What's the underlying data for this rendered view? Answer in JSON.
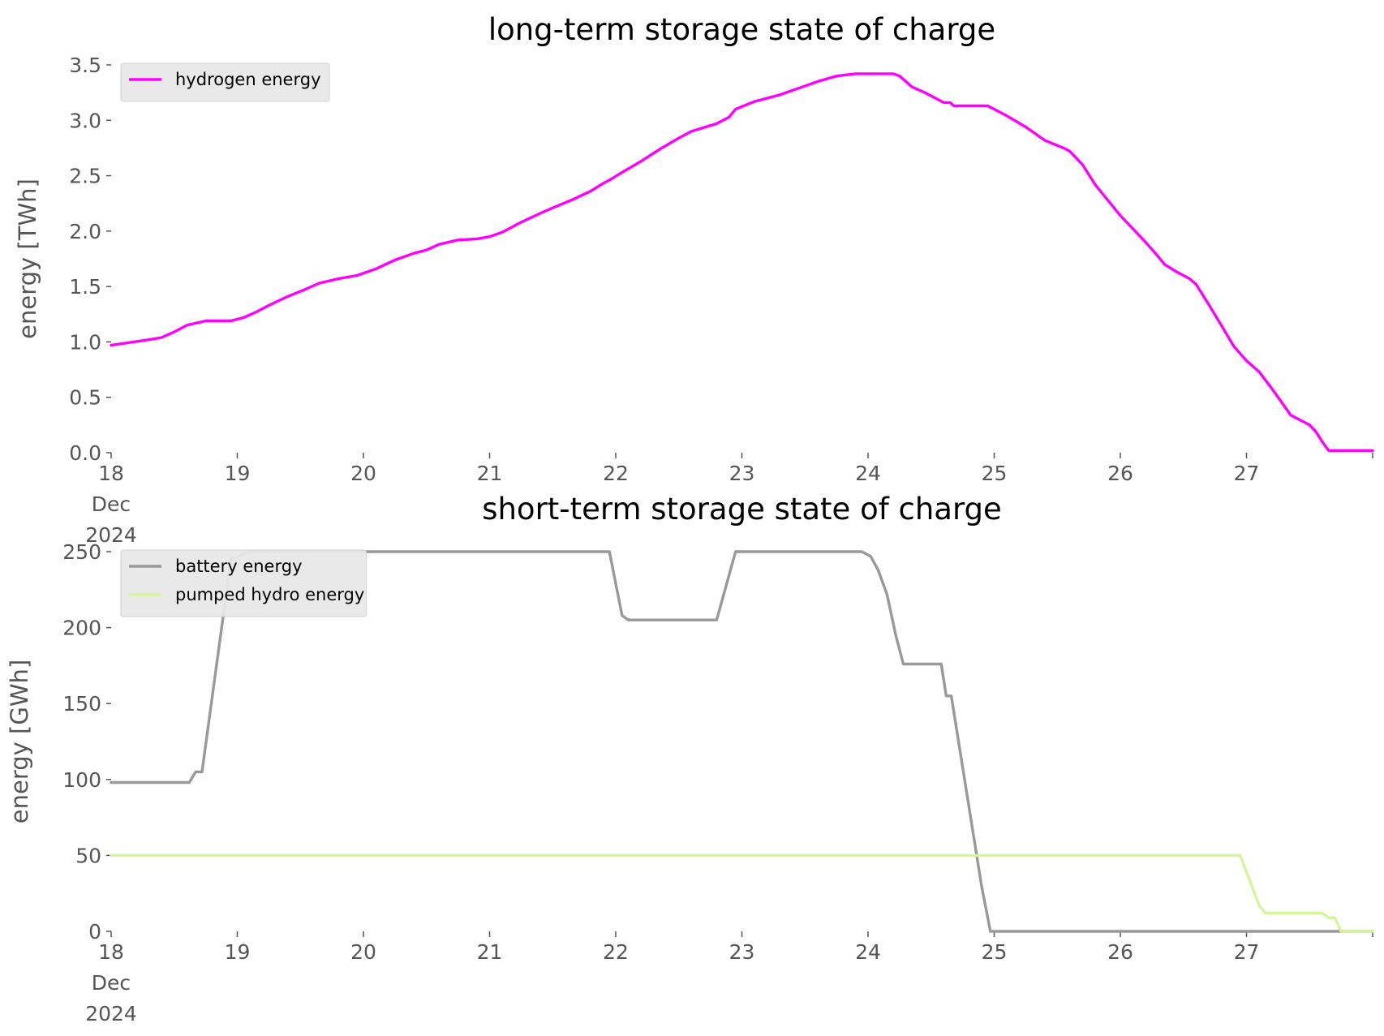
{
  "chart_data": [
    {
      "type": "line",
      "title": "long-term storage state of charge",
      "ylabel": "energy [TWh]",
      "xlabel": "",
      "x_unit": "day of December 2024",
      "xlim": [
        18,
        28
      ],
      "ylim": [
        0,
        3.5
      ],
      "xticks": [
        {
          "value": 18,
          "lines": [
            "18",
            "Dec",
            "2024"
          ]
        },
        {
          "value": 19,
          "lines": [
            "19"
          ]
        },
        {
          "value": 20,
          "lines": [
            "20"
          ]
        },
        {
          "value": 21,
          "lines": [
            "21"
          ]
        },
        {
          "value": 22,
          "lines": [
            "22"
          ]
        },
        {
          "value": 23,
          "lines": [
            "23"
          ]
        },
        {
          "value": 24,
          "lines": [
            "24"
          ]
        },
        {
          "value": 25,
          "lines": [
            "25"
          ]
        },
        {
          "value": 26,
          "lines": [
            "26"
          ]
        },
        {
          "value": 27,
          "lines": [
            "27"
          ]
        },
        {
          "value": 28,
          "lines": [
            ""
          ]
        }
      ],
      "yticks": [
        {
          "value": 0,
          "label": "0.0"
        },
        {
          "value": 0.5,
          "label": "0.5"
        },
        {
          "value": 1,
          "label": "1.0"
        },
        {
          "value": 1.5,
          "label": "1.5"
        },
        {
          "value": 2,
          "label": "2.0"
        },
        {
          "value": 2.5,
          "label": "2.5"
        },
        {
          "value": 3,
          "label": "3.0"
        },
        {
          "value": 3.5,
          "label": "3.5"
        }
      ],
      "grid": false,
      "legend_position": "top-left",
      "series": [
        {
          "name": "hydrogen energy",
          "color": "#ff00ff",
          "x": [
            18.0,
            18.3,
            18.4,
            18.5,
            18.6,
            18.75,
            18.85,
            18.95,
            19.05,
            19.15,
            19.25,
            19.4,
            19.55,
            19.65,
            19.8,
            19.95,
            20.1,
            20.25,
            20.4,
            20.5,
            20.6,
            20.75,
            20.9,
            21.0,
            21.1,
            21.25,
            21.4,
            21.5,
            21.65,
            21.8,
            21.9,
            21.95,
            22.05,
            22.2,
            22.35,
            22.5,
            22.6,
            22.8,
            22.9,
            22.95,
            23.1,
            23.3,
            23.45,
            23.6,
            23.75,
            23.9,
            24.05,
            24.2,
            24.25,
            24.35,
            24.45,
            24.55,
            24.6,
            24.65,
            24.68,
            24.75,
            24.9,
            24.95,
            25.1,
            25.25,
            25.4,
            25.55,
            25.6,
            25.7,
            25.8,
            25.9,
            26.0,
            26.1,
            26.2,
            26.3,
            26.35,
            26.45,
            26.55,
            26.6,
            26.7,
            26.8,
            26.9,
            27.0,
            27.1,
            27.2,
            27.3,
            27.35,
            27.45,
            27.5,
            27.55,
            27.6,
            27.65,
            27.68,
            27.7,
            27.8,
            27.9,
            28.0
          ],
          "values": [
            0.97,
            1.02,
            1.04,
            1.09,
            1.15,
            1.19,
            1.19,
            1.19,
            1.22,
            1.27,
            1.33,
            1.41,
            1.48,
            1.53,
            1.57,
            1.6,
            1.66,
            1.74,
            1.8,
            1.83,
            1.88,
            1.92,
            1.93,
            1.95,
            1.99,
            2.08,
            2.16,
            2.21,
            2.28,
            2.36,
            2.43,
            2.46,
            2.53,
            2.63,
            2.74,
            2.84,
            2.9,
            2.97,
            3.03,
            3.1,
            3.17,
            3.23,
            3.29,
            3.35,
            3.4,
            3.42,
            3.42,
            3.42,
            3.4,
            3.3,
            3.25,
            3.19,
            3.16,
            3.16,
            3.13,
            3.13,
            3.13,
            3.13,
            3.04,
            2.94,
            2.82,
            2.75,
            2.72,
            2.6,
            2.42,
            2.28,
            2.14,
            2.02,
            1.9,
            1.77,
            1.7,
            1.63,
            1.57,
            1.52,
            1.34,
            1.15,
            0.96,
            0.83,
            0.73,
            0.58,
            0.42,
            0.34,
            0.28,
            0.25,
            0.19,
            0.1,
            0.02,
            0.02,
            0.02,
            0.02,
            0.02,
            0.02
          ]
        }
      ]
    },
    {
      "type": "line",
      "title": "short-term storage state of charge",
      "ylabel": "energy [GWh]",
      "xlabel": "",
      "x_unit": "day of December 2024",
      "xlim": [
        18,
        28
      ],
      "ylim": [
        0,
        250
      ],
      "xticks": [
        {
          "value": 18,
          "lines": [
            "18",
            "Dec",
            "2024"
          ]
        },
        {
          "value": 19,
          "lines": [
            "19"
          ]
        },
        {
          "value": 20,
          "lines": [
            "20"
          ]
        },
        {
          "value": 21,
          "lines": [
            "21"
          ]
        },
        {
          "value": 22,
          "lines": [
            "22"
          ]
        },
        {
          "value": 23,
          "lines": [
            "23"
          ]
        },
        {
          "value": 24,
          "lines": [
            "24"
          ]
        },
        {
          "value": 25,
          "lines": [
            "25"
          ]
        },
        {
          "value": 26,
          "lines": [
            "26"
          ]
        },
        {
          "value": 27,
          "lines": [
            "27"
          ]
        },
        {
          "value": 28,
          "lines": [
            ""
          ]
        }
      ],
      "yticks": [
        {
          "value": 0,
          "label": "0"
        },
        {
          "value": 50,
          "label": "50"
        },
        {
          "value": 100,
          "label": "100"
        },
        {
          "value": 150,
          "label": "150"
        },
        {
          "value": 200,
          "label": "200"
        },
        {
          "value": 250,
          "label": "250"
        }
      ],
      "grid": false,
      "legend_position": "top-left",
      "series": [
        {
          "name": "battery energy",
          "color": "#999999",
          "x": [
            18.0,
            18.62,
            18.67,
            18.72,
            18.95,
            19.1,
            21.95,
            22.05,
            22.1,
            22.2,
            22.8,
            22.95,
            23.1,
            23.95,
            24.02,
            24.08,
            24.15,
            24.22,
            24.28,
            24.35,
            24.5,
            24.58,
            24.62,
            24.66,
            24.9,
            24.97,
            25.05,
            28.0
          ],
          "values": [
            98,
            98,
            105,
            105,
            245,
            250,
            250,
            208,
            205,
            205,
            205,
            250,
            250,
            250,
            247,
            238,
            222,
            195,
            176,
            176,
            176,
            176,
            155,
            155,
            30,
            0,
            0,
            0
          ]
        },
        {
          "name": "pumped hydro energy",
          "color": "#d4f59a",
          "x": [
            18.0,
            26.95,
            27.1,
            27.15,
            27.6,
            27.65,
            27.7,
            27.75,
            28.0
          ],
          "values": [
            50,
            50,
            17,
            12,
            12,
            9,
            9,
            0,
            0
          ]
        }
      ]
    }
  ]
}
